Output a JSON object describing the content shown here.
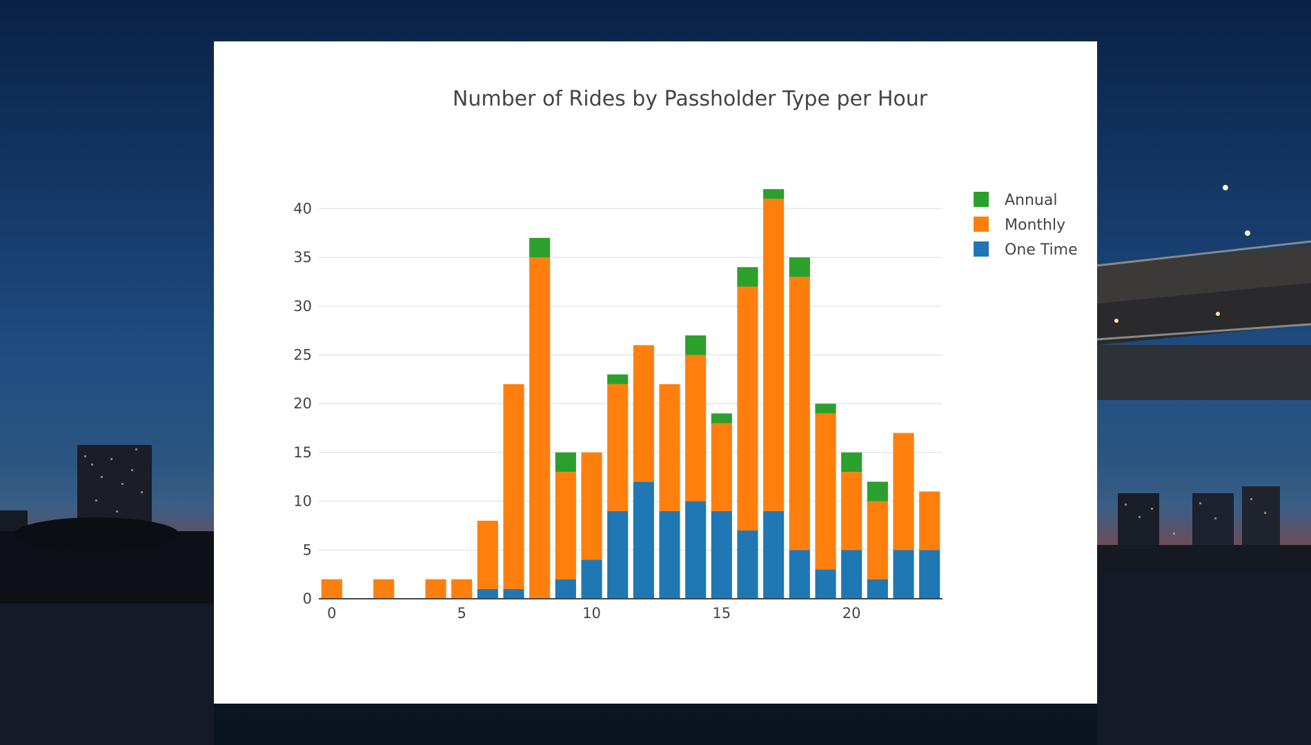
{
  "colors": {
    "annual": "#2ca02c",
    "monthly": "#ff7f0e",
    "one_time": "#1f77b4",
    "text": "#444444",
    "grid": "#e6e6e6",
    "panel": "#ffffff"
  },
  "chart_data": {
    "type": "bar",
    "barmode": "stack",
    "title": "Number of Rides by Passholder Type per Hour",
    "xlabel": "",
    "ylabel": "",
    "x": [
      0,
      1,
      2,
      3,
      4,
      5,
      6,
      7,
      8,
      9,
      10,
      11,
      12,
      13,
      14,
      15,
      16,
      17,
      18,
      19,
      20,
      21,
      22,
      23
    ],
    "xlim": [
      -0.5,
      23.5
    ],
    "ylim": [
      0,
      43
    ],
    "x_ticks": [
      0,
      5,
      10,
      15,
      20
    ],
    "x_tick_labels": [
      "0",
      "5",
      "10",
      "15",
      "20"
    ],
    "y_ticks": [
      0,
      5,
      10,
      15,
      20,
      25,
      30,
      35,
      40
    ],
    "y_tick_labels": [
      "0",
      "5",
      "10",
      "15",
      "20",
      "25",
      "30",
      "35",
      "40"
    ],
    "grid": true,
    "legend_position": "top-right",
    "series": [
      {
        "name": "One Time",
        "color": "#1f77b4",
        "values": [
          0,
          0,
          0,
          0,
          0,
          0,
          1,
          1,
          0,
          2,
          4,
          9,
          12,
          9,
          10,
          9,
          7,
          9,
          5,
          3,
          5,
          2,
          5,
          5
        ]
      },
      {
        "name": "Monthly",
        "color": "#ff7f0e",
        "values": [
          2,
          0,
          2,
          0,
          2,
          2,
          7,
          21,
          35,
          11,
          11,
          13,
          14,
          13,
          15,
          9,
          25,
          32,
          28,
          16,
          8,
          8,
          12,
          6
        ]
      },
      {
        "name": "Annual",
        "color": "#2ca02c",
        "values": [
          0,
          0,
          0,
          0,
          0,
          0,
          0,
          0,
          2,
          2,
          0,
          1,
          0,
          0,
          2,
          1,
          2,
          1,
          2,
          1,
          2,
          2,
          0,
          0
        ]
      }
    ],
    "legend": [
      {
        "name": "Annual",
        "color": "#2ca02c"
      },
      {
        "name": "Monthly",
        "color": "#ff7f0e"
      },
      {
        "name": "One Time",
        "color": "#1f77b4"
      }
    ]
  }
}
